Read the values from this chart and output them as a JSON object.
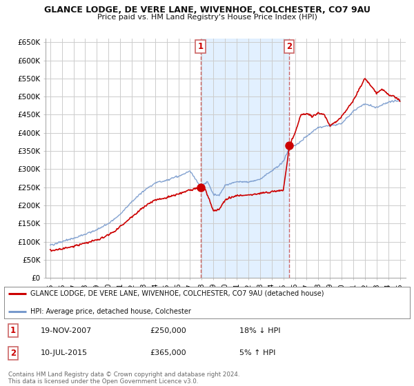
{
  "title": "GLANCE LODGE, DE VERE LANE, WIVENHOE, COLCHESTER, CO7 9AU",
  "subtitle": "Price paid vs. HM Land Registry's House Price Index (HPI)",
  "ylim": [
    0,
    660000
  ],
  "yticks": [
    0,
    50000,
    100000,
    150000,
    200000,
    250000,
    300000,
    350000,
    400000,
    450000,
    500000,
    550000,
    600000,
    650000
  ],
  "ytick_labels": [
    "£0",
    "£50K",
    "£100K",
    "£150K",
    "£200K",
    "£250K",
    "£300K",
    "£350K",
    "£400K",
    "£450K",
    "£500K",
    "£550K",
    "£600K",
    "£650K"
  ],
  "line1_color": "#cc0000",
  "line2_color": "#7799cc",
  "sale1_date": 2007.89,
  "sale1_price": 250000,
  "sale2_date": 2015.52,
  "sale2_price": 365000,
  "legend_label1": "GLANCE LODGE, DE VERE LANE, WIVENHOE, COLCHESTER, CO7 9AU (detached house)",
  "legend_label2": "HPI: Average price, detached house, Colchester",
  "annotation1_label": "1",
  "annotation2_label": "2",
  "footer": "Contains HM Land Registry data © Crown copyright and database right 2024.\nThis data is licensed under the Open Government Licence v3.0.",
  "background_color": "#ffffff",
  "grid_color": "#cccccc",
  "vline_color": "#cc6666",
  "highlight_color": "#ddeeff"
}
